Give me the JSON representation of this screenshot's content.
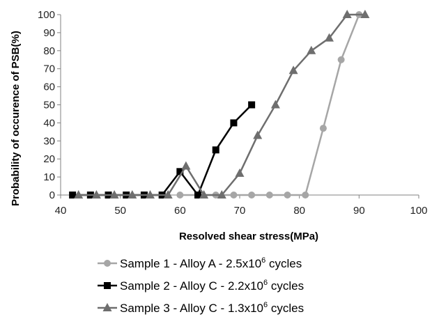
{
  "chart_data": {
    "type": "line",
    "title": "",
    "xlabel": "Resolved shear stress(MPa)",
    "ylabel": "Probability of occurence of PSB(%)",
    "xlim": [
      40,
      100
    ],
    "ylim": [
      0,
      100
    ],
    "xticks": [
      "40",
      "50",
      "60",
      "70",
      "80",
      "90",
      "100"
    ],
    "yticks": [
      "0",
      "10",
      "20",
      "30",
      "40",
      "50",
      "60",
      "70",
      "80",
      "90",
      "100"
    ],
    "grid": false,
    "legend_position": "bottom",
    "series": [
      {
        "name": "Sample 1 - Alloy A - 2.5x10",
        "name_exponent": "6",
        "name_suffix": " cycles",
        "marker": "circle",
        "color": "#a6a6a6",
        "x": [
          60,
          66,
          69,
          72,
          75,
          78,
          81,
          84,
          87,
          90
        ],
        "y": [
          0,
          0,
          0,
          0,
          0,
          0,
          0,
          37,
          75,
          100
        ]
      },
      {
        "name": "Sample 2 - Alloy C - 2.2x10",
        "name_exponent": "6",
        "name_suffix": " cycles",
        "marker": "square",
        "color": "#000000",
        "x": [
          42,
          45,
          48,
          51,
          54,
          57,
          60,
          63,
          66,
          69,
          72
        ],
        "y": [
          0,
          0,
          0,
          0,
          0,
          0,
          13,
          0,
          25,
          40,
          50
        ]
      },
      {
        "name": "Sample 3 - Alloy C - 1.3x10",
        "name_exponent": "6",
        "name_suffix": " cycles",
        "marker": "triangle",
        "color": "#6e6e6e",
        "x": [
          43,
          46,
          49,
          52,
          55,
          58,
          61,
          64,
          67,
          70,
          73,
          76,
          79,
          82,
          85,
          88,
          91
        ],
        "y": [
          0,
          0,
          0,
          0,
          0,
          0,
          16,
          0,
          0,
          12,
          33,
          50,
          69,
          80,
          87,
          100,
          100
        ]
      }
    ]
  }
}
